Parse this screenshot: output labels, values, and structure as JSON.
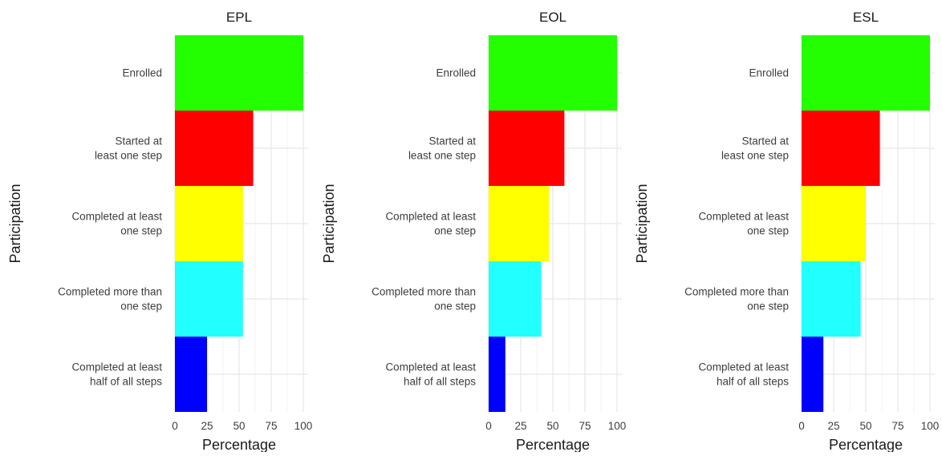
{
  "chart_data": [
    {
      "type": "bar",
      "orientation": "horizontal",
      "title": "EPL",
      "xlabel": "Percentage",
      "ylabel": "Participation",
      "xlim": [
        0,
        100
      ],
      "xticks": [
        "0",
        "25",
        "50",
        "75",
        "100"
      ],
      "grid": true,
      "categories": [
        [
          "Enrolled"
        ],
        [
          "Started at",
          "least one step"
        ],
        [
          "Completed at least",
          "one step"
        ],
        [
          "Completed more than",
          "one step"
        ],
        [
          "Completed at least",
          "half of all steps"
        ]
      ],
      "values": [
        100,
        61,
        53,
        53,
        25
      ],
      "colors": [
        "#23ff00",
        "#ff0000",
        "#ffff00",
        "#22ffff",
        "#0000ff"
      ]
    },
    {
      "type": "bar",
      "orientation": "horizontal",
      "title": "EOL",
      "xlabel": "Percentage",
      "ylabel": "Participation",
      "xlim": [
        0,
        100
      ],
      "xticks": [
        "0",
        "25",
        "50",
        "75",
        "100"
      ],
      "grid": true,
      "categories": [
        [
          "Enrolled"
        ],
        [
          "Started at",
          "least one step"
        ],
        [
          "Completed at least",
          "one step"
        ],
        [
          "Completed more than",
          "one step"
        ],
        [
          "Completed at least",
          "half of all steps"
        ]
      ],
      "values": [
        100,
        59,
        47,
        41,
        13
      ],
      "colors": [
        "#23ff00",
        "#ff0000",
        "#ffff00",
        "#22ffff",
        "#0000ff"
      ]
    },
    {
      "type": "bar",
      "orientation": "horizontal",
      "title": "ESL",
      "xlabel": "Percentage",
      "ylabel": "Participation",
      "xlim": [
        0,
        100
      ],
      "xticks": [
        "0",
        "25",
        "50",
        "75",
        "100"
      ],
      "grid": true,
      "categories": [
        [
          "Enrolled"
        ],
        [
          "Started at",
          "least one step"
        ],
        [
          "Completed at least",
          "one step"
        ],
        [
          "Completed more than",
          "one step"
        ],
        [
          "Completed at least",
          "half of all steps"
        ]
      ],
      "values": [
        100,
        61,
        50,
        46,
        17
      ],
      "colors": [
        "#23ff00",
        "#ff0000",
        "#ffff00",
        "#22ffff",
        "#0000ff"
      ]
    }
  ]
}
